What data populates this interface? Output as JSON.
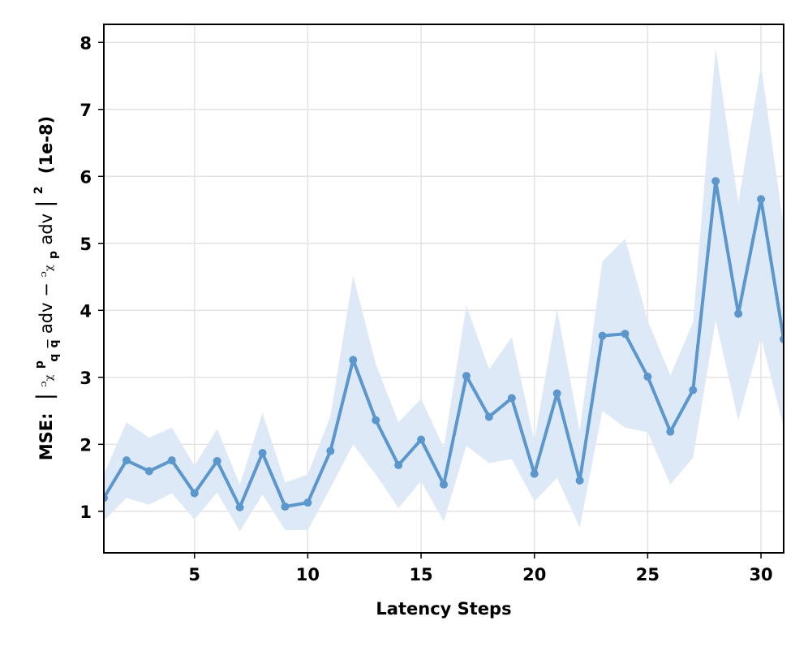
{
  "chart_data": {
    "type": "line",
    "xlabel": "Latency Steps",
    "ylabel": {
      "prefix": "MSE:",
      "e1": "ᵓᵪ",
      "sup1": "p",
      "sub1": "q",
      "sub1bar": "q",
      "adv1": "adv − ",
      "e2": "ᵓᵪ",
      "sub2": "p",
      "adv2": "adv",
      "sq": "2",
      "unit": "(1e-8)"
    },
    "xlim": [
      1,
      31
    ],
    "ylim": [
      0.38,
      8.27
    ],
    "xticks": [
      5,
      10,
      15,
      20,
      25,
      30
    ],
    "yticks": [
      1,
      2,
      3,
      4,
      5,
      6,
      7,
      8
    ],
    "grid": true,
    "line_color": "#5b97cc",
    "band_color": "#dde9f6",
    "series": [
      {
        "x": [
          1,
          2,
          3,
          4,
          5,
          6,
          7,
          8,
          9,
          10,
          11,
          12,
          13,
          14,
          15,
          16,
          17,
          18,
          19,
          20,
          21,
          22,
          23,
          24,
          25,
          26,
          27,
          28,
          29,
          30,
          31
        ],
        "y": [
          1.2,
          1.76,
          1.6,
          1.76,
          1.27,
          1.75,
          1.06,
          1.87,
          1.07,
          1.13,
          1.9,
          3.26,
          2.36,
          1.69,
          2.07,
          1.4,
          3.02,
          2.41,
          2.69,
          1.56,
          2.76,
          1.46,
          3.62,
          3.65,
          3.01,
          2.19,
          2.81,
          5.93,
          3.95,
          5.66,
          3.57
        ],
        "lower": [
          0.86,
          1.2,
          1.1,
          1.27,
          0.88,
          1.28,
          0.7,
          1.25,
          0.72,
          0.72,
          1.35,
          2.0,
          1.55,
          1.05,
          1.45,
          0.85,
          1.98,
          1.72,
          1.78,
          1.15,
          1.5,
          0.76,
          2.5,
          2.25,
          2.18,
          1.4,
          1.8,
          3.85,
          2.36,
          3.6,
          2.25
        ],
        "upper": [
          1.55,
          2.33,
          2.1,
          2.25,
          1.68,
          2.23,
          1.4,
          2.47,
          1.43,
          1.55,
          2.42,
          4.52,
          3.2,
          2.33,
          2.68,
          1.95,
          4.07,
          3.12,
          3.6,
          2.05,
          4.02,
          2.2,
          4.73,
          5.07,
          3.85,
          3.03,
          3.82,
          7.92,
          5.6,
          7.66,
          5.25
        ]
      }
    ]
  }
}
